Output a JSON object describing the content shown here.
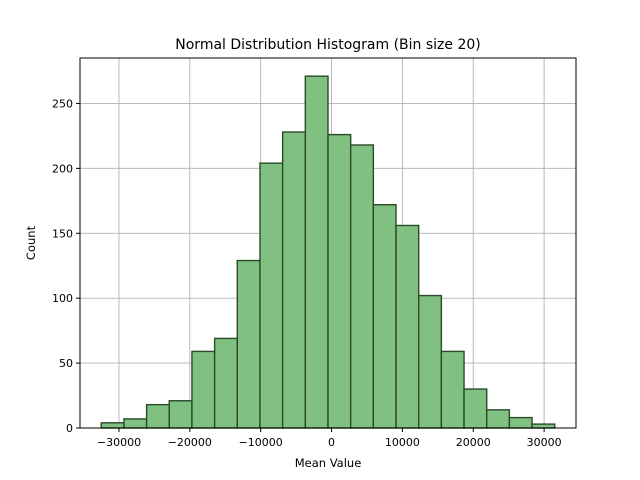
{
  "chart_data": {
    "type": "bar",
    "title": "Normal Distribution Histogram (Bin size 20)",
    "xlabel": "Mean Value",
    "ylabel": "Count",
    "xlim": [
      -35500,
      34500
    ],
    "ylim": [
      0,
      285
    ],
    "xticks": [
      -30000,
      -20000,
      -10000,
      0,
      10000,
      20000,
      30000
    ],
    "xtick_labels": [
      "−30000",
      "−20000",
      "−10000",
      "0",
      "10000",
      "20000",
      "30000"
    ],
    "yticks": [
      0,
      50,
      100,
      150,
      200,
      250
    ],
    "ytick_labels": [
      "0",
      "50",
      "100",
      "150",
      "200",
      "250"
    ],
    "grid": true,
    "bar_color": "#80c080",
    "edge_color": "#2a4a2a",
    "bins": [
      {
        "x0": -32500,
        "x1": -29300,
        "count": 4
      },
      {
        "x0": -29300,
        "x1": -26100,
        "count": 7
      },
      {
        "x0": -26100,
        "x1": -22900,
        "count": 18
      },
      {
        "x0": -22900,
        "x1": -19700,
        "count": 21
      },
      {
        "x0": -19700,
        "x1": -16500,
        "count": 59
      },
      {
        "x0": -16500,
        "x1": -13300,
        "count": 69
      },
      {
        "x0": -13300,
        "x1": -10100,
        "count": 129
      },
      {
        "x0": -10100,
        "x1": -6900,
        "count": 204
      },
      {
        "x0": -6900,
        "x1": -3700,
        "count": 228
      },
      {
        "x0": -3700,
        "x1": -500,
        "count": 271
      },
      {
        "x0": -500,
        "x1": 2700,
        "count": 226
      },
      {
        "x0": 2700,
        "x1": 5900,
        "count": 218
      },
      {
        "x0": 5900,
        "x1": 9100,
        "count": 172
      },
      {
        "x0": 9100,
        "x1": 12300,
        "count": 156
      },
      {
        "x0": 12300,
        "x1": 15500,
        "count": 102
      },
      {
        "x0": 15500,
        "x1": 18700,
        "count": 59
      },
      {
        "x0": 18700,
        "x1": 21900,
        "count": 30
      },
      {
        "x0": 21900,
        "x1": 25100,
        "count": 14
      },
      {
        "x0": 25100,
        "x1": 28300,
        "count": 8
      },
      {
        "x0": 28300,
        "x1": 31500,
        "count": 3
      }
    ]
  }
}
